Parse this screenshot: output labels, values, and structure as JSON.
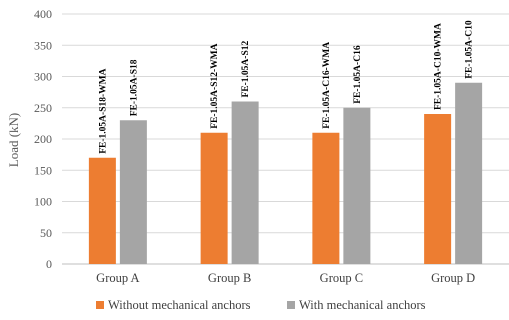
{
  "chart_data": {
    "type": "bar",
    "categories": [
      "Group A",
      "Group B",
      "Group C",
      "Group D"
    ],
    "series": [
      {
        "name": "Without mechanical anchors",
        "color": "#ED7D31",
        "values": [
          170,
          210,
          210,
          240
        ],
        "labels": [
          "FE-1.05A-S18-WMA",
          "FE-1.05A-S12-WMA",
          "FE-1.05A-C16-WMA",
          "FE-1.05A-C10-WMA"
        ]
      },
      {
        "name": "With mechanical anchors",
        "color": "#A5A5A5",
        "values": [
          230,
          260,
          250,
          290
        ],
        "labels": [
          "FE-1.05A-S18",
          "FE-1.05A-S12",
          "FE-1.05A-C16",
          "FE-1.05A-C10"
        ]
      }
    ],
    "ylabel": "Load  (kN)",
    "xlabel": "",
    "ylim": [
      0,
      400
    ],
    "yticks": [
      0,
      50,
      100,
      150,
      200,
      250,
      300,
      350,
      400
    ],
    "grid": true,
    "legend": "bottom"
  }
}
